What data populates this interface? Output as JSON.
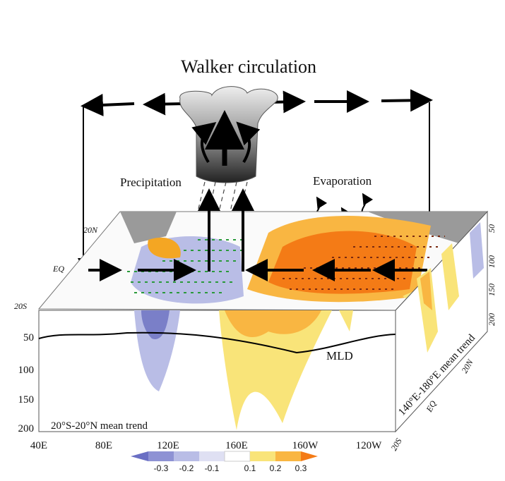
{
  "title": "Walker circulation",
  "labels": {
    "precipitation": "Precipitation",
    "evaporation": "Evaporation",
    "mld": "MLD",
    "front_face": "20°S-20°N mean trend",
    "side_face": "140°E-180°E mean trend"
  },
  "latitudes": [
    "20N",
    "EQ",
    "20S"
  ],
  "side_latitudes": [
    "20S",
    "EQ",
    "20N"
  ],
  "depth_ticks": [
    "50",
    "100",
    "150",
    "200"
  ],
  "side_depth_ticks": [
    "50",
    "100",
    "150",
    "200"
  ],
  "longitude_ticks": [
    "40E",
    "80E",
    "120E",
    "160E",
    "160W",
    "120W"
  ],
  "colorbar": {
    "labels": [
      "-0.3",
      "-0.2",
      "-0.1",
      "0.1",
      "0.2",
      "0.3"
    ]
  }
}
